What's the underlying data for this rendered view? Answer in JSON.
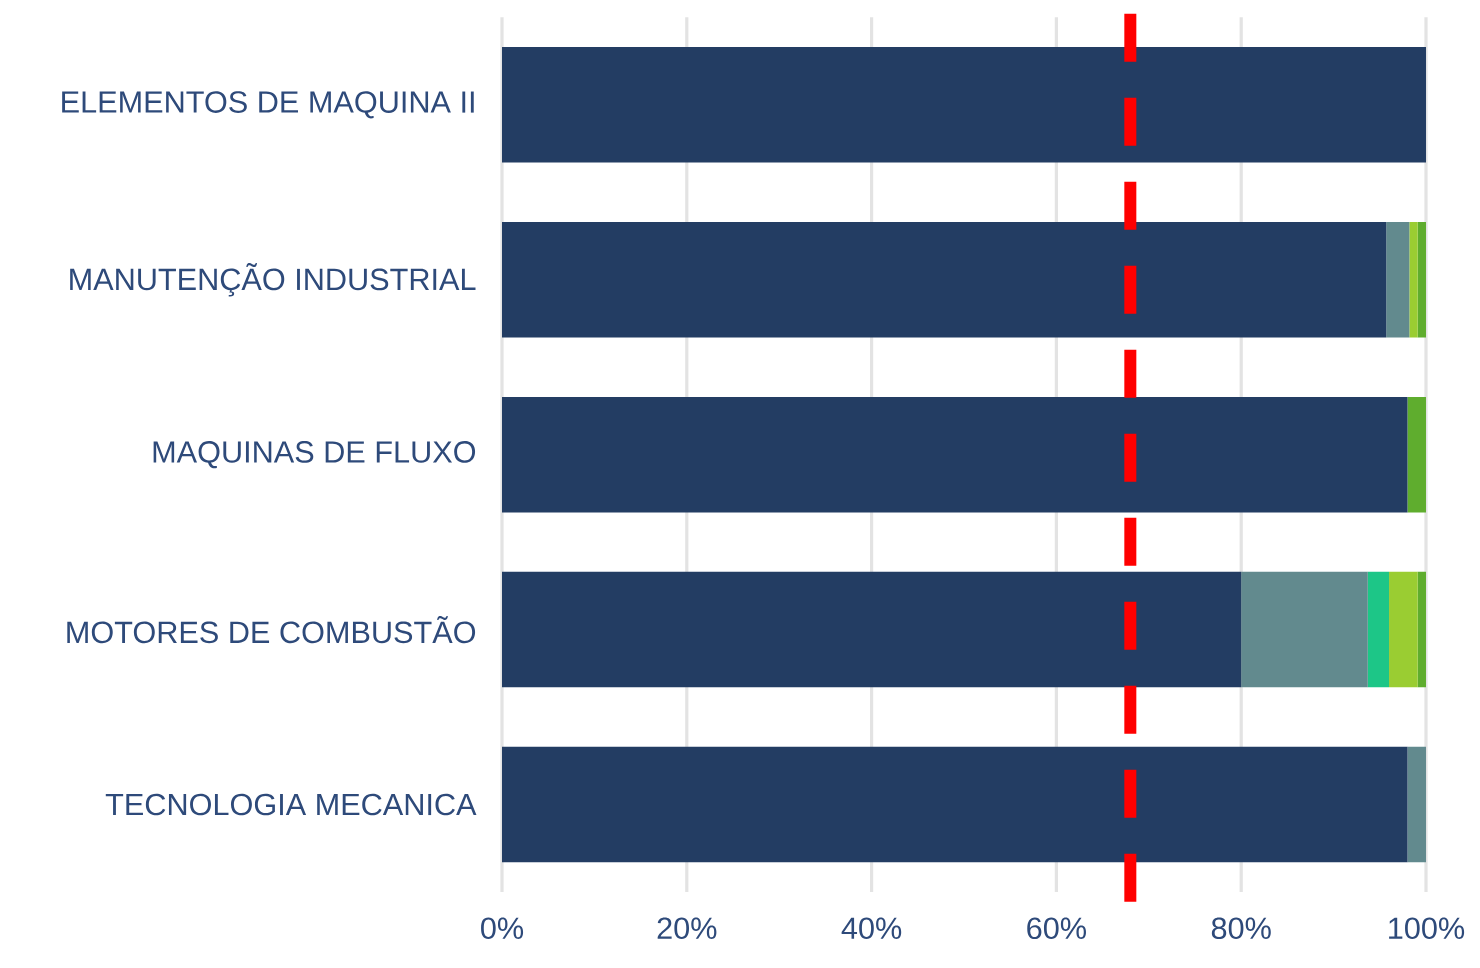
{
  "chart_data": {
    "type": "bar",
    "orientation": "horizontal",
    "stacked": true,
    "categories": [
      "ELEMENTOS DE MAQUINA II",
      "MANUTENÇÃO INDUSTRIAL",
      "MAQUINAS DE FLUXO",
      "MOTORES DE COMBUSTÃO",
      "TECNOLOGIA MECANICA"
    ],
    "series": [
      {
        "color": "#233d63",
        "values": [
          100,
          95.7,
          98,
          80,
          98
        ]
      },
      {
        "color": "#628a8e",
        "values": [
          0,
          2.5,
          0,
          13.7,
          2
        ]
      },
      {
        "color": "#1dc687",
        "values": [
          0,
          0,
          0,
          2.3,
          0
        ]
      },
      {
        "color": "#9acd32",
        "values": [
          0,
          0.9,
          0,
          3.1,
          0
        ]
      },
      {
        "color": "#5fad2e",
        "values": [
          0,
          0.9,
          2,
          0.9,
          0
        ]
      }
    ],
    "xlim": [
      0,
      100
    ],
    "xticks": [
      {
        "value": 0,
        "label": "0%"
      },
      {
        "value": 20,
        "label": "20%"
      },
      {
        "value": 40,
        "label": "40%"
      },
      {
        "value": 60,
        "label": "60%"
      },
      {
        "value": 80,
        "label": "80%"
      },
      {
        "value": 100,
        "label": "100%"
      }
    ],
    "grid": "x",
    "ref_lines": [
      {
        "axis": "x",
        "value": 68,
        "color": "#ff0000",
        "line_style": "dashed"
      }
    ]
  }
}
